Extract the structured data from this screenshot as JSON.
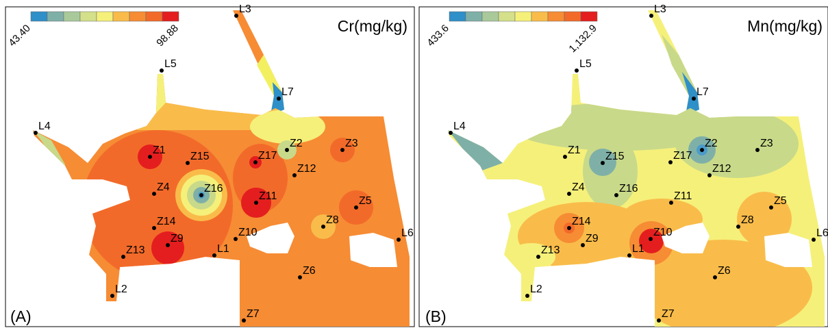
{
  "panels": [
    {
      "label": "(A)",
      "title": "Cr(mg/kg)",
      "legend": {
        "min": "43.40",
        "max": "98.88"
      }
    },
    {
      "label": "(B)",
      "title": "Mn(mg/kg)",
      "legend": {
        "min": "433.6",
        "max": "1,132.9"
      }
    }
  ],
  "sites": [
    "L3",
    "L5",
    "L7",
    "L4",
    "Z1",
    "Z15",
    "Z17",
    "Z2",
    "Z3",
    "Z12",
    "Z4",
    "Z16",
    "Z11",
    "Z5",
    "Z14",
    "Z8",
    "Z10",
    "L6",
    "Z9",
    "Z13",
    "L1",
    "Z6",
    "L2",
    "Z7"
  ]
}
